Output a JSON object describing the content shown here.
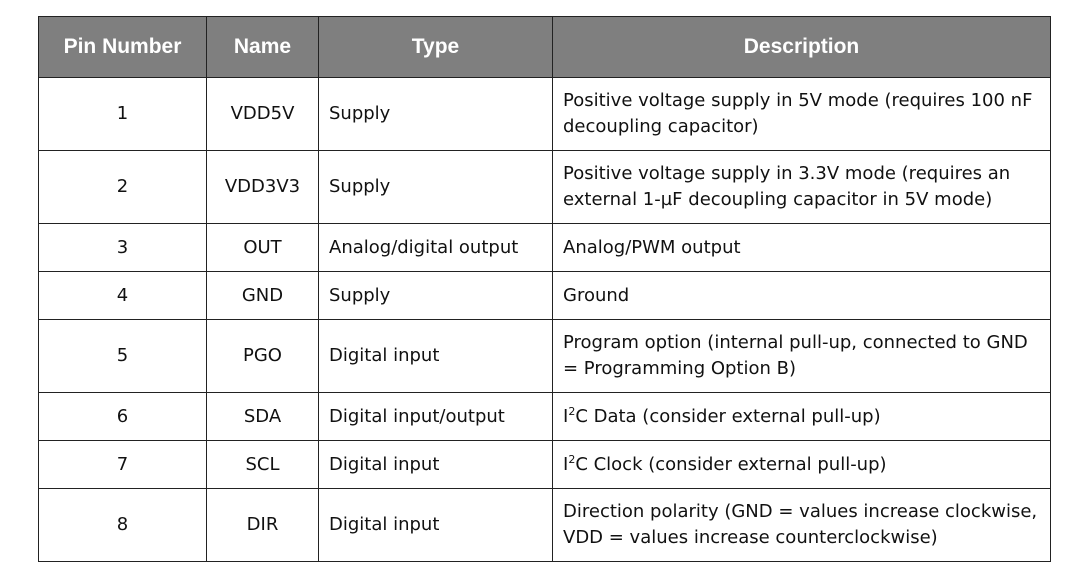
{
  "table": {
    "headers": [
      "Pin Number",
      "Name",
      "Type",
      "Description"
    ],
    "rows": [
      {
        "pin": "1",
        "name": "VDD5V",
        "type": "Supply",
        "desc_pre": "Positive voltage supply in 5V mode (requires 100 nF decoupling capacitor)",
        "lines": 2
      },
      {
        "pin": "2",
        "name": "VDD3V3",
        "type": "Supply",
        "desc_pre": "Positive voltage supply in 3.3V mode (requires an external 1-µF decoupling capacitor in 5V mode)",
        "lines": 2
      },
      {
        "pin": "3",
        "name": "OUT",
        "type": "Analog/digital output",
        "desc_pre": "Analog/PWM output",
        "lines": 1
      },
      {
        "pin": "4",
        "name": "GND",
        "type": "Supply",
        "desc_pre": "Ground",
        "lines": 1
      },
      {
        "pin": "5",
        "name": "PGO",
        "type": "Digital input",
        "desc_pre": "Program option (internal pull-up, connected to GND = Programming Option B)",
        "lines": 2
      },
      {
        "pin": "6",
        "name": "SDA",
        "type": "Digital input/output",
        "desc_pre": "I",
        "desc_sup": "2",
        "desc_post": "C Data (consider external pull-up)",
        "lines": 1
      },
      {
        "pin": "7",
        "name": "SCL",
        "type": "Digital input",
        "desc_pre": "I",
        "desc_sup": "2",
        "desc_post": "C Clock (consider external pull-up)",
        "lines": 1
      },
      {
        "pin": "8",
        "name": "DIR",
        "type": "Digital input",
        "desc_pre": "Direction polarity (GND = values increase clockwise, VDD = values increase counterclockwise)",
        "lines": 2
      }
    ]
  }
}
